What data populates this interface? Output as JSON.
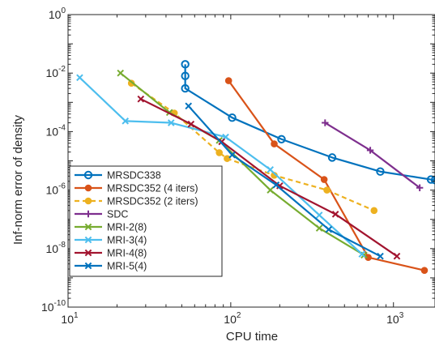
{
  "chart_data": {
    "type": "line",
    "xlabel": "CPU time",
    "ylabel": "Inf-norm error of density",
    "xscale": "log",
    "yscale": "log",
    "xlim": [
      10,
      1800
    ],
    "ylim": [
      1e-10,
      1
    ],
    "grid": false,
    "legend_position": "bottom-left",
    "x_ticks": [
      {
        "value": 10,
        "base": "10",
        "exp": "1"
      },
      {
        "value": 100,
        "base": "10",
        "exp": "2"
      },
      {
        "value": 1000,
        "base": "10",
        "exp": "3"
      }
    ],
    "y_ticks": [
      {
        "value": 1,
        "base": "10",
        "exp": "0"
      },
      {
        "value": 0.01,
        "base": "10",
        "exp": "-2"
      },
      {
        "value": 0.0001,
        "base": "10",
        "exp": "-4"
      },
      {
        "value": 1e-06,
        "base": "10",
        "exp": "-6"
      },
      {
        "value": 1e-08,
        "base": "10",
        "exp": "-8"
      },
      {
        "value": 1e-10,
        "base": "10",
        "exp": "-10"
      }
    ],
    "series": [
      {
        "name": "MRSDC338",
        "color": "#0072BD",
        "marker": "circle",
        "dash": "solid",
        "x": [
          52.5,
          52.5,
          52.5,
          102,
          205,
          420,
          830,
          1700,
          1800
        ],
        "y": [
          0.02,
          0.008,
          0.003,
          0.0003,
          5.5e-05,
          1.3e-05,
          4.3e-06,
          2.3e-06,
          2.2e-06
        ]
      },
      {
        "name": "MRSDC352 (4 iters)",
        "color": "#D95319",
        "marker": "dot",
        "dash": "solid",
        "x": [
          97,
          185,
          375,
          700,
          1550
        ],
        "y": [
          0.0055,
          3.8e-05,
          2.3e-06,
          5e-09,
          1.8e-09
        ]
      },
      {
        "name": "MRSDC352 (2 iters)",
        "color": "#EDB120",
        "marker": "dot",
        "dash": "dashed",
        "x": [
          24.5,
          45,
          85,
          95,
          185,
          390,
          760
        ],
        "y": [
          0.0045,
          0.00043,
          1.9e-05,
          1.2e-05,
          3.2e-06,
          1e-06,
          2e-07
        ]
      },
      {
        "name": "SDC",
        "color": "#7E2F8E",
        "marker": "plus",
        "dash": "solid",
        "x": [
          380,
          720,
          1450
        ],
        "y": [
          0.0002,
          2.3e-05,
          1.2e-06
        ]
      },
      {
        "name": "MRI-2(8)",
        "color": "#77AC30",
        "marker": "x",
        "dash": "solid",
        "x": [
          21,
          42,
          85,
          175,
          350,
          660
        ],
        "y": [
          0.01,
          0.00045,
          5e-05,
          1e-06,
          5e-08,
          6e-09
        ]
      },
      {
        "name": "MRI-3(4)",
        "color": "#4DBEEE",
        "marker": "x",
        "dash": "solid",
        "x": [
          11.8,
          22.5,
          43,
          93,
          175,
          350,
          640
        ],
        "y": [
          0.007,
          0.00023,
          0.0002,
          6.5e-05,
          5e-06,
          1.4e-07,
          6.5e-09
        ]
      },
      {
        "name": "MRI-4(8)",
        "color": "#A2142F",
        "marker": "x",
        "dash": "solid",
        "x": [
          28,
          57,
          88,
          200,
          440,
          1050
        ],
        "y": [
          0.0013,
          0.00018,
          4.5e-05,
          1.4e-06,
          1.5e-07,
          5.5e-09
        ]
      },
      {
        "name": "MRI-5(4)",
        "color": "#0072BD",
        "marker": "x",
        "dash": "solid",
        "x": [
          55,
          102,
          190,
          400,
          830
        ],
        "y": [
          0.00075,
          1.6e-05,
          1.5e-06,
          4.5e-08,
          5.5e-09
        ]
      }
    ]
  }
}
